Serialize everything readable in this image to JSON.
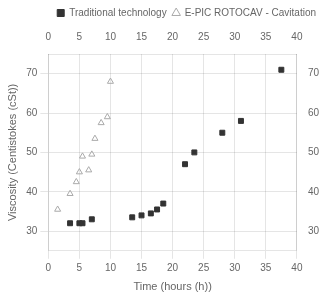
{
  "chart_data": {
    "type": "scatter",
    "xlabel": "Time (hours (h))",
    "ylabel": "Viscosity (Centistokes (cSt))",
    "series": [
      {
        "name": "Traditional technology",
        "color": "#333333",
        "marker": "square",
        "x": [
          3.5,
          5.0,
          5.5,
          7.0,
          13.5,
          15.0,
          16.5,
          17.5,
          18.5,
          22.0,
          23.5,
          28.0,
          31.0,
          37.5
        ],
        "values": [
          32.0,
          32.0,
          32.0,
          33.0,
          33.5,
          34.0,
          34.5,
          35.5,
          37.0,
          47.0,
          50.0,
          55.0,
          58.0,
          71.0
        ]
      },
      {
        "name": "E-PIC ROTOCAV - Cavitation",
        "color": "#aaaaaa",
        "marker": "triangle",
        "x": [
          1.5,
          3.5,
          4.5,
          5.0,
          5.5,
          6.5,
          7.0,
          7.5,
          8.5,
          9.5,
          10.0
        ],
        "values": [
          35.5,
          39.5,
          42.5,
          45.0,
          49.0,
          45.5,
          49.5,
          53.5,
          57.5,
          59.0,
          68.0
        ]
      }
    ],
    "xlim": [
      0,
      40
    ],
    "xticks": [
      0,
      5,
      10,
      15,
      20,
      25,
      30,
      35,
      40
    ],
    "ylim": [
      25,
      75
    ],
    "yticks": [
      30,
      40,
      50,
      60,
      70
    ],
    "grid": true,
    "legend": "top"
  }
}
